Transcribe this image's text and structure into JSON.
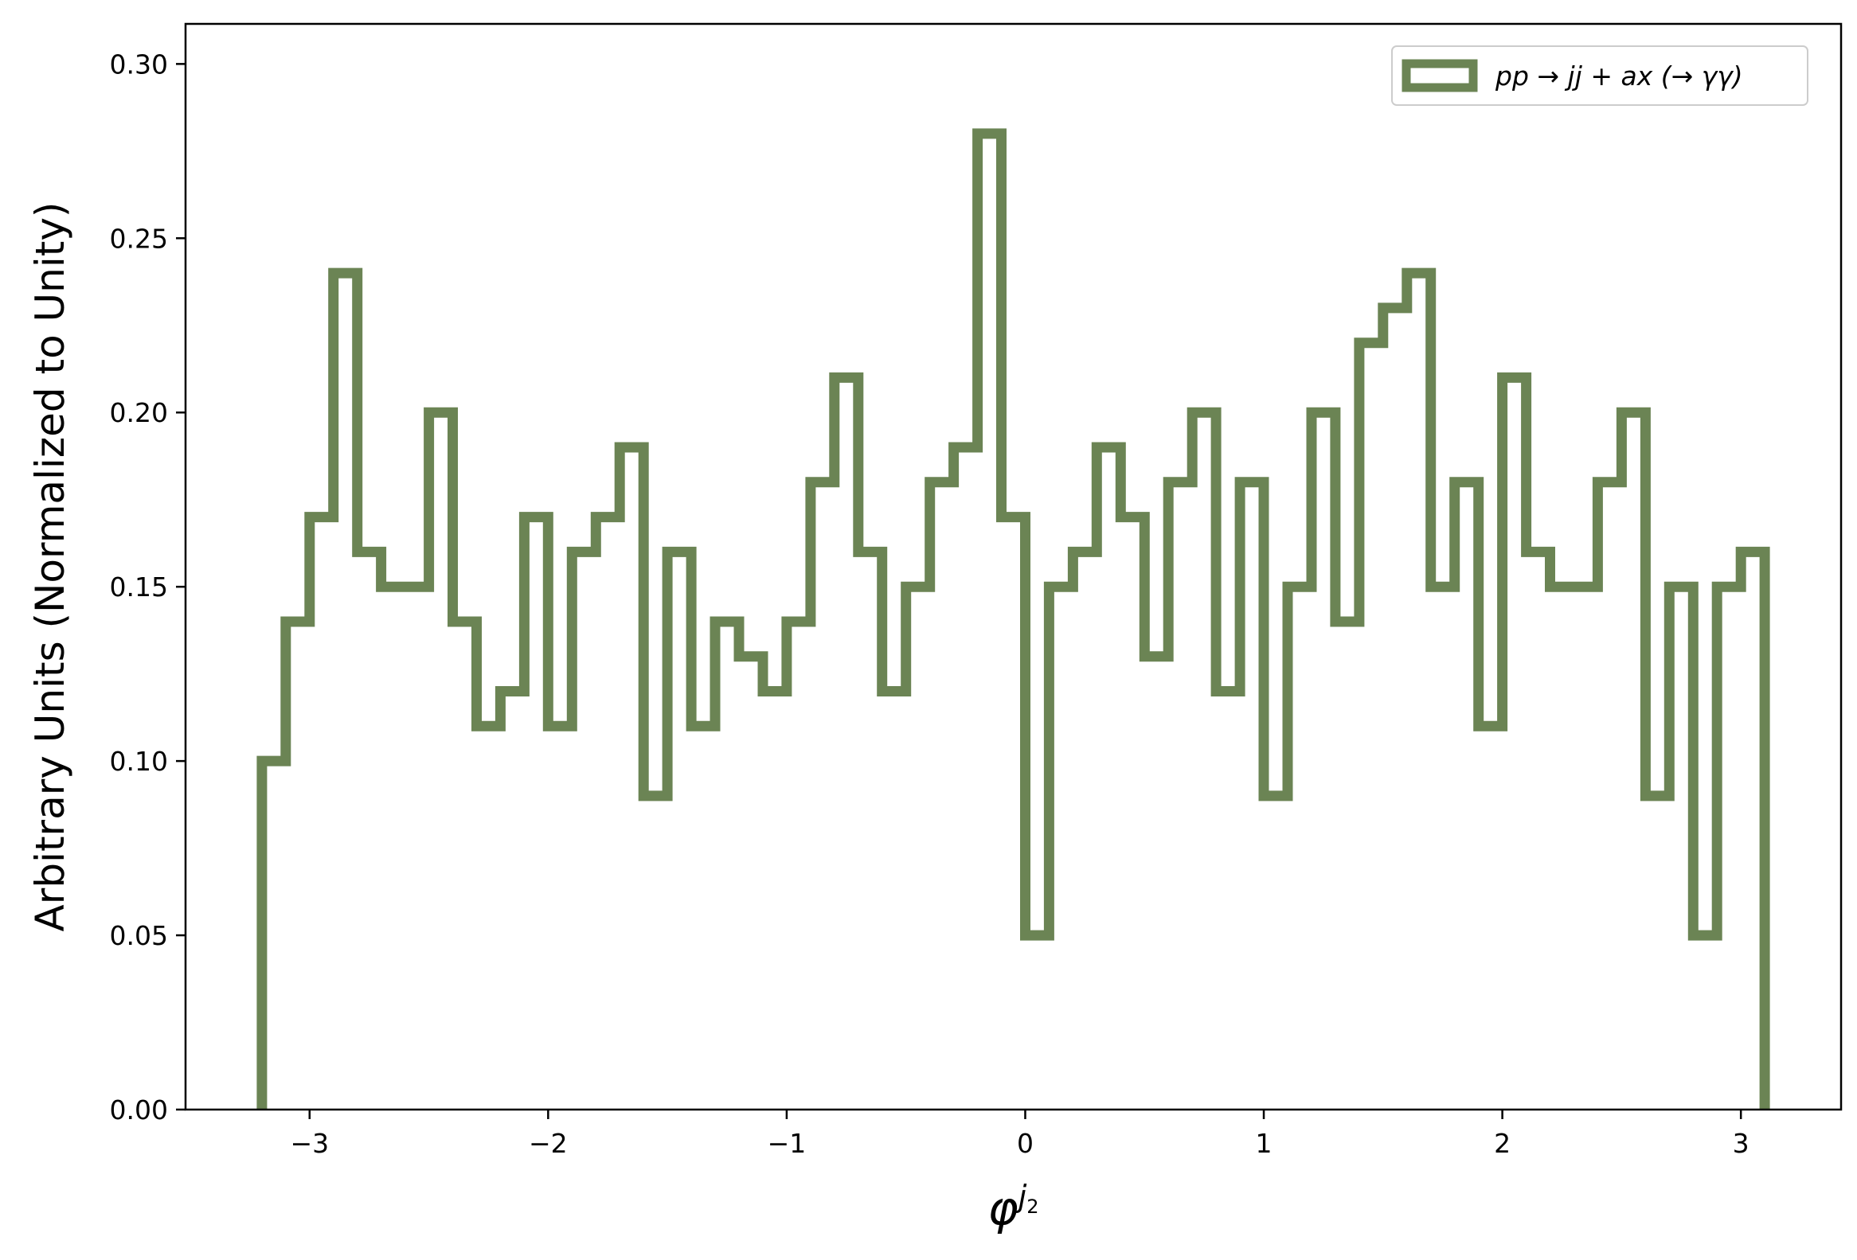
{
  "chart_data": {
    "type": "step-histogram",
    "xlabel": "φ",
    "xlabel_superscript": "j",
    "xlabel_subscript": "2",
    "ylabel": "Arbitrary Units (Normalized to Unity)",
    "xlim": [
      -3.52,
      3.42
    ],
    "ylim": [
      0,
      0.3115
    ],
    "xticks": [
      -3,
      -2,
      -1,
      0,
      1,
      2,
      3
    ],
    "xtick_labels": [
      "−3",
      "−2",
      "−1",
      "0",
      "1",
      "2",
      "3"
    ],
    "yticks": [
      0,
      0.05,
      0.1,
      0.15,
      0.2,
      0.25,
      0.3
    ],
    "ytick_labels": [
      "0.00",
      "0.05",
      "0.10",
      "0.15",
      "0.20",
      "0.25",
      "0.30"
    ],
    "grid": false,
    "legend_position": "top-right",
    "series": [
      {
        "name": "pp → jj + ax (→ γγ)",
        "color": "#6b8454",
        "bin_edges": [
          -3.2,
          -3.1,
          -3.0,
          -2.9,
          -2.8,
          -2.7,
          -2.6,
          -2.5,
          -2.4,
          -2.3,
          -2.2,
          -2.1,
          -2.0,
          -1.9,
          -1.8,
          -1.7,
          -1.6,
          -1.5,
          -1.4,
          -1.3,
          -1.2,
          -1.1,
          -1.0,
          -0.9,
          -0.8,
          -0.7,
          -0.6,
          -0.5,
          -0.4,
          -0.3,
          -0.2,
          -0.1,
          0.0,
          0.1,
          0.2,
          0.3,
          0.4,
          0.5,
          0.6,
          0.7,
          0.8,
          0.9,
          1.0,
          1.1,
          1.2,
          1.3,
          1.4,
          1.5,
          1.6,
          1.7,
          1.8,
          1.9,
          2.0,
          2.1,
          2.2,
          2.3,
          2.4,
          2.5,
          2.6,
          2.7,
          2.8,
          2.9,
          3.0,
          3.1
        ],
        "values": [
          0.1,
          0.14,
          0.17,
          0.24,
          0.16,
          0.15,
          0.15,
          0.2,
          0.14,
          0.11,
          0.12,
          0.17,
          0.11,
          0.16,
          0.17,
          0.19,
          0.09,
          0.16,
          0.11,
          0.14,
          0.13,
          0.12,
          0.14,
          0.18,
          0.21,
          0.16,
          0.12,
          0.15,
          0.18,
          0.19,
          0.28,
          0.17,
          0.05,
          0.15,
          0.16,
          0.19,
          0.17,
          0.13,
          0.18,
          0.2,
          0.12,
          0.18,
          0.09,
          0.15,
          0.2,
          0.14,
          0.22,
          0.23,
          0.24,
          0.15,
          0.18,
          0.11,
          0.21,
          0.16,
          0.15,
          0.15,
          0.18,
          0.2,
          0.09,
          0.15,
          0.05,
          0.15,
          0.16
        ]
      }
    ]
  }
}
